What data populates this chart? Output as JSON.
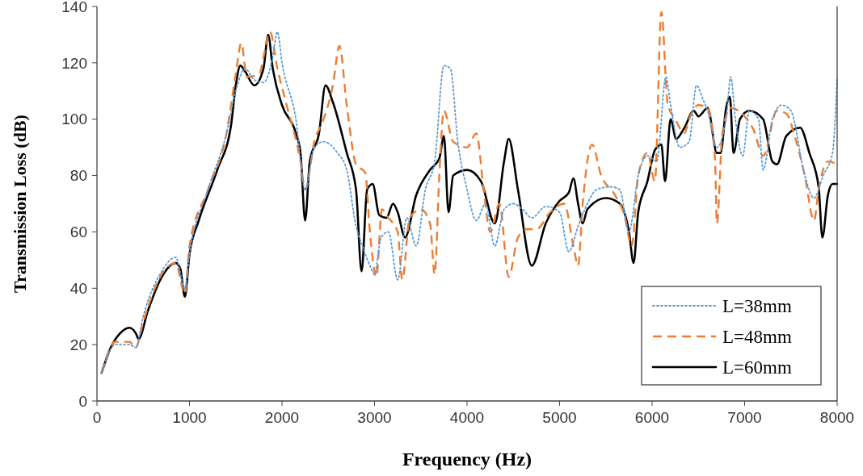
{
  "chart_data": {
    "type": "line",
    "xlabel": "Frequency (Hz)",
    "ylabel": "Transmission Loss (dB)",
    "xlim": [
      0,
      8000
    ],
    "ylim": [
      0,
      140
    ],
    "xticks": [
      0,
      1000,
      2000,
      3000,
      4000,
      5000,
      6000,
      7000,
      8000
    ],
    "yticks": [
      0,
      20,
      40,
      60,
      80,
      100,
      120,
      140
    ],
    "grid": false,
    "legend": "bottom right",
    "series": [
      {
        "name": "L=38mm",
        "color": "#5b9bd5",
        "line_style": "dotted",
        "x": [
          50,
          200,
          350,
          420,
          500,
          700,
          850,
          950,
          1000,
          1200,
          1400,
          1500,
          1600,
          1700,
          1800,
          1900,
          1950,
          2000,
          2150,
          2250,
          2350,
          2450,
          2600,
          2700,
          2800,
          2870,
          2950,
          3000,
          3070,
          3150,
          3250,
          3350,
          3450,
          3550,
          3650,
          3750,
          3820,
          3900,
          4000,
          4100,
          4200,
          4300,
          4400,
          4500,
          4600,
          4700,
          4850,
          5000,
          5100,
          5200,
          5300,
          5400,
          5550,
          5650,
          5750,
          5850,
          5950,
          6050,
          6150,
          6200,
          6300,
          6400,
          6480,
          6550,
          6600,
          6700,
          6800,
          6850,
          6900,
          6980,
          7050,
          7150,
          7200,
          7300,
          7400,
          7500,
          7650,
          7750,
          7850,
          7950,
          8000
        ],
        "values": [
          10,
          20,
          20,
          19,
          30,
          46,
          51,
          40,
          52,
          75,
          95,
          110,
          118,
          114,
          113,
          122,
          131,
          120,
          100,
          75,
          90,
          92,
          88,
          82,
          62,
          55,
          48,
          45,
          58,
          60,
          43,
          65,
          55,
          75,
          85,
          119,
          118,
          92,
          75,
          64,
          70,
          55,
          68,
          70,
          68,
          65,
          69,
          67,
          53,
          62,
          70,
          75,
          76,
          75,
          60,
          80,
          87,
          85,
          115,
          105,
          90,
          92,
          112,
          107,
          103,
          90,
          100,
          115,
          100,
          87,
          103,
          100,
          82,
          100,
          105,
          103,
          80,
          72,
          80,
          88,
          114
        ]
      },
      {
        "name": "L=48mm",
        "color": "#ed7d31",
        "line_style": "dashed",
        "x": [
          50,
          200,
          350,
          420,
          500,
          700,
          850,
          950,
          1000,
          1200,
          1400,
          1500,
          1560,
          1620,
          1750,
          1870,
          1950,
          2050,
          2200,
          2250,
          2350,
          2450,
          2550,
          2620,
          2700,
          2800,
          2900,
          2950,
          3020,
          3080,
          3150,
          3250,
          3300,
          3380,
          3500,
          3600,
          3650,
          3700,
          3750,
          3850,
          4000,
          4100,
          4180,
          4250,
          4350,
          4450,
          4550,
          4650,
          4750,
          4900,
          5050,
          5150,
          5200,
          5250,
          5350,
          5450,
          5600,
          5700,
          5780,
          5850,
          5950,
          6030,
          6100,
          6170,
          6250,
          6350,
          6400,
          6500,
          6600,
          6680,
          6700,
          6760,
          6850,
          7000,
          7100,
          7200,
          7350,
          7450,
          7550,
          7650,
          7750,
          7800,
          7900,
          8000
        ],
        "values": [
          10,
          21,
          21,
          19,
          28,
          45,
          49,
          38,
          55,
          75,
          95,
          116,
          127,
          115,
          116,
          131,
          118,
          105,
          85,
          75,
          92,
          100,
          112,
          126,
          105,
          84,
          81,
          60,
          44,
          68,
          65,
          60,
          43,
          65,
          68,
          63,
          45,
          80,
          103,
          92,
          90,
          95,
          75,
          60,
          70,
          44,
          58,
          61,
          61,
          67,
          70,
          55,
          48,
          70,
          91,
          80,
          73,
          66,
          55,
          80,
          88,
          78,
          138,
          105,
          100,
          95,
          100,
          105,
          104,
          86,
          63,
          95,
          104,
          101,
          96,
          87,
          103,
          102,
          93,
          80,
          64,
          75,
          85,
          84
        ]
      },
      {
        "name": "L=60mm",
        "color": "#000000",
        "line_style": "solid",
        "x": [
          50,
          150,
          250,
          350,
          420,
          450,
          550,
          700,
          850,
          900,
          950,
          1000,
          1100,
          1300,
          1450,
          1500,
          1550,
          1600,
          1700,
          1800,
          1850,
          1900,
          2000,
          2150,
          2200,
          2250,
          2300,
          2400,
          2470,
          2550,
          2700,
          2800,
          2860,
          2920,
          2980,
          3050,
          3130,
          3200,
          3250,
          3330,
          3450,
          3600,
          3700,
          3750,
          3800,
          3850,
          4000,
          4150,
          4300,
          4400,
          4450,
          4550,
          4700,
          4850,
          5000,
          5100,
          5150,
          5200,
          5250,
          5300,
          5500,
          5650,
          5750,
          5800,
          5850,
          5950,
          6030,
          6100,
          6140,
          6200,
          6260,
          6350,
          6450,
          6500,
          6600,
          6700,
          6740,
          6800,
          6840,
          6880,
          6950,
          7050,
          7200,
          7300,
          7350,
          7450,
          7600,
          7700,
          7800,
          7840,
          7900,
          7950,
          8000
        ],
        "values": [
          10,
          19,
          24,
          26,
          24,
          22,
          32,
          44,
          49,
          47,
          37,
          52,
          64,
          82,
          98,
          112,
          119,
          117,
          112,
          118,
          130,
          118,
          105,
          95,
          88,
          64,
          85,
          95,
          112,
          106,
          88,
          75,
          46,
          75,
          77,
          66,
          65,
          70,
          67,
          58,
          73,
          82,
          86,
          94,
          67,
          80,
          82,
          78,
          63,
          85,
          93,
          75,
          48,
          63,
          71,
          74,
          79,
          70,
          63,
          68,
          72,
          70,
          60,
          49,
          67,
          78,
          89,
          91,
          78,
          100,
          93,
          97,
          103,
          101,
          104,
          88,
          88,
          104,
          108,
          88,
          100,
          103,
          100,
          85,
          84,
          94,
          97,
          88,
          76,
          58,
          73,
          77,
          77
        ]
      }
    ]
  }
}
